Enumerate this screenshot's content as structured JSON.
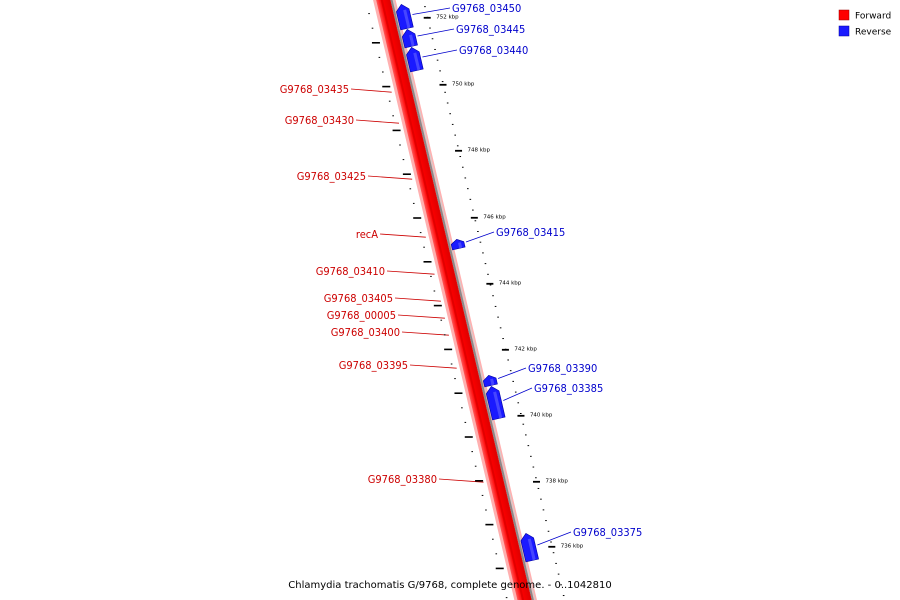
{
  "colors": {
    "forward": "#ff0000",
    "reverse": "#1a1aff",
    "backbone": "#888888",
    "forward_label": "#cc0000",
    "reverse_label": "#0000cc"
  },
  "legend": {
    "items": [
      {
        "label": "Forward",
        "color": "#ff0000"
      },
      {
        "label": "Reverse",
        "color": "#1a1aff"
      }
    ]
  },
  "caption": "Chlamydia trachomatis G/9768, complete genome. - 0..1042810",
  "ticks": {
    "labels": [
      "752 kbp",
      "750 kbp",
      "748 kbp",
      "746 kbp",
      "744 kbp",
      "742 kbp",
      "740 kbp",
      "738 kbp",
      "736 kbp"
    ]
  },
  "genes": {
    "forward": [
      "G9768_03435",
      "G9768_03430",
      "G9768_03425",
      "recA",
      "G9768_03410",
      "G9768_03405",
      "G9768_00005",
      "G9768_03400",
      "G9768_03395",
      "G9768_03380"
    ],
    "reverse": [
      "G9768_03450",
      "G9768_03445",
      "G9768_03440",
      "G9768_03415",
      "G9768_03390",
      "G9768_03385",
      "G9768_03375"
    ]
  }
}
